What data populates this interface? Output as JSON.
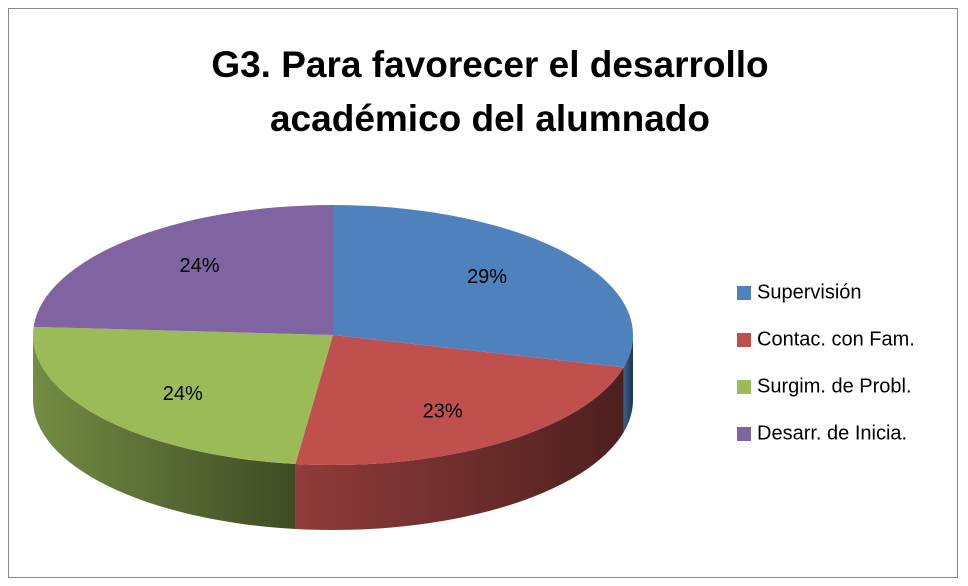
{
  "chart_data": {
    "type": "pie3d",
    "title": "G3. Para favorecer el desarrollo académico del alumnado",
    "categories": [
      "Supervisión",
      "Contac. con Fam.",
      "Surgim. de Probl.",
      "Desarr. de Inicia."
    ],
    "values": [
      29,
      23,
      24,
      24
    ],
    "value_labels": [
      "29%",
      "23%",
      "24%",
      "24%"
    ],
    "colors": [
      "#4f81bd",
      "#c0504d",
      "#9bbb59",
      "#8064a2"
    ],
    "legend": "right"
  }
}
